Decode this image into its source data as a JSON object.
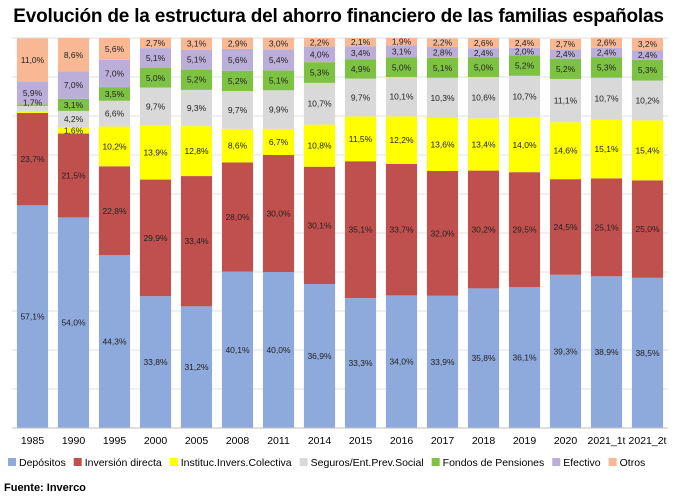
{
  "title": "Evolución de la estructura del ahorro financiero de las familias españolas",
  "source": "Fuente: Inverco",
  "chart_data": {
    "type": "bar",
    "stacked": true,
    "ylim": [
      0,
      100
    ],
    "unit": "%",
    "gridlines": true,
    "legend_position": "bottom",
    "categories": [
      "1985",
      "1990",
      "1995",
      "2000",
      "2005",
      "2008",
      "2011",
      "2014",
      "2015",
      "2016",
      "2017",
      "2018",
      "2019",
      "2020",
      "2021_1t",
      "2021_2t"
    ],
    "series": [
      {
        "name": "Depósitos",
        "color": "#8EAADC",
        "values": [
          57.1,
          54.0,
          44.3,
          33.8,
          31.2,
          40.1,
          40.0,
          36.9,
          33.3,
          34.0,
          33.9,
          35.8,
          36.1,
          39.3,
          38.9,
          38.5
        ],
        "labels": [
          "57,1%",
          "54,0%",
          "44,3%",
          "33,8%",
          "31,2%",
          "40,1%",
          "40,0%",
          "36,9%",
          "33,3%",
          "34,0%",
          "33,9%",
          "35,8%",
          "36,1%",
          "39,3%",
          "38,9%",
          "38,5%"
        ]
      },
      {
        "name": "Inversión directa",
        "color": "#C0504D",
        "values": [
          23.7,
          21.5,
          22.8,
          29.9,
          33.4,
          28.0,
          30.0,
          30.1,
          35.1,
          33.7,
          32.0,
          30.2,
          29.5,
          24.5,
          25.1,
          25.0
        ],
        "labels": [
          "23,7%",
          "21,5%",
          "22,8%",
          "29,9%",
          "33,4%",
          "28,0%",
          "30,0%",
          "30,1%",
          "35,1%",
          "33,7%",
          "32,0%",
          "30,2%",
          "29,5%",
          "24,5%",
          "25,1%",
          "25,0%"
        ]
      },
      {
        "name": "Instituc.Invers.Colectiva",
        "color": "#FFFF00",
        "values": [
          0.5,
          1.6,
          10.2,
          13.9,
          12.8,
          8.6,
          6.7,
          10.8,
          11.5,
          12.2,
          13.6,
          13.4,
          14.0,
          14.6,
          15.1,
          15.4
        ],
        "labels": [
          "",
          "1,6%",
          "10,2%",
          "13,9%",
          "12,8%",
          "8,6%",
          "6,7%",
          "10,8%",
          "11,5%",
          "12,2%",
          "13,6%",
          "13,4%",
          "14,0%",
          "14,6%",
          "15,1%",
          "15,4%"
        ]
      },
      {
        "name": "Seguros/Ent.Prev.Social",
        "color": "#D9D9D9",
        "values": [
          1.3,
          4.2,
          6.6,
          9.7,
          9.3,
          9.7,
          9.9,
          10.7,
          9.7,
          10.1,
          10.3,
          10.6,
          10.7,
          11.1,
          10.7,
          10.2
        ],
        "labels": [
          "",
          "4,2%",
          "6,6%",
          "9,7%",
          "9,3%",
          "9,7%",
          "9,9%",
          "10,7%",
          "9,7%",
          "10,1%",
          "10,3%",
          "10,6%",
          "10,7%",
          "11,1%",
          "10,7%",
          "10,2%"
        ]
      },
      {
        "name": "Fondos de Pensiones",
        "color": "#7DC242",
        "values": [
          0.4,
          3.1,
          3.5,
          5.0,
          5.2,
          5.2,
          5.1,
          5.3,
          4.9,
          5.0,
          5.1,
          5.0,
          5.2,
          5.2,
          5.3,
          5.3
        ],
        "labels": [
          "",
          "3,1%",
          "3,5%",
          "5,0%",
          "5,2%",
          "5,2%",
          "5,1%",
          "5,3%",
          "4,9%",
          "5,0%",
          "5,1%",
          "5,0%",
          "5,2%",
          "5,2%",
          "5,3%",
          "5,3%"
        ]
      },
      {
        "name": "Efectivo",
        "color": "#BBAED8",
        "values": [
          5.9,
          7.0,
          7.0,
          5.1,
          5.1,
          5.6,
          5.4,
          4.0,
          3.4,
          3.1,
          2.8,
          2.4,
          2.0,
          2.4,
          2.4,
          2.4
        ],
        "labels": [
          "5,9%",
          "7,0%",
          "7,0%",
          "5,1%",
          "5,1%",
          "5,6%",
          "5,4%",
          "4,0%",
          "3,4%",
          "3,1%",
          "2,8%",
          "2,4%",
          "2,0%",
          "2,4%",
          "2,4%",
          "2,4%"
        ]
      },
      {
        "name": "Otros",
        "color": "#F8B894",
        "values": [
          11.0,
          8.6,
          5.6,
          2.7,
          3.1,
          2.9,
          3.0,
          2.2,
          2.1,
          1.9,
          2.2,
          2.6,
          2.4,
          2.7,
          2.6,
          3.2
        ],
        "labels": [
          "11,0%",
          "8,6%",
          "5,6%",
          "2,7%",
          "3,1%",
          "2,9%",
          "3,0%",
          "2,2%",
          "2,1%",
          "1,9%",
          "2,2%",
          "2,6%",
          "2,4%",
          "2,7%",
          "2,6%",
          "3,2%"
        ]
      }
    ],
    "annotations": [
      {
        "category": "1985",
        "text": "1,7%"
      }
    ]
  }
}
